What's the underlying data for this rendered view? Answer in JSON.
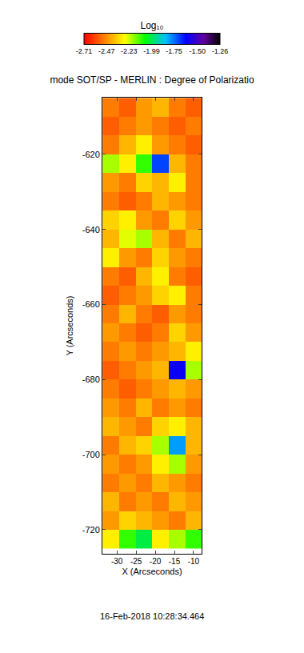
{
  "chart_data": {
    "type": "heatmap",
    "title": "mode SOT/SP - MERLIN : Degree of Polarizatio",
    "x_label": "X (Arcseconds)",
    "y_label": "Y (Arcseconds)",
    "annotations": [
      "16-Feb-2018 10:28:34.464"
    ],
    "x": [
      -31.6,
      -27.3,
      -23.0,
      -18.7,
      -14.4,
      -10.1
    ],
    "y": [
      -607.5,
      -612.5,
      -617.5,
      -622.5,
      -627.5,
      -632.5,
      -637.5,
      -642.5,
      -647.5,
      -652.5,
      -657.5,
      -662.5,
      -667.5,
      -672.5,
      -677.5,
      -682.5,
      -687.5,
      -692.5,
      -697.5,
      -702.5,
      -707.5,
      -712.5,
      -717.5,
      -722.5
    ],
    "cells": [
      [
        -2.5,
        -2.55,
        -2.45,
        -2.4,
        -2.5,
        -2.55
      ],
      [
        -2.55,
        -2.5,
        -2.45,
        -2.5,
        -2.55,
        -2.5
      ],
      [
        -2.5,
        -2.4,
        -2.3,
        -2.45,
        -2.5,
        -2.55
      ],
      [
        -2.2,
        -2.3,
        -2.1,
        -1.7,
        -2.4,
        -2.5
      ],
      [
        -2.45,
        -2.5,
        -2.35,
        -2.4,
        -2.3,
        -2.5
      ],
      [
        -2.5,
        -2.55,
        -2.5,
        -2.4,
        -2.45,
        -2.5
      ],
      [
        -2.35,
        -2.3,
        -2.45,
        -2.5,
        -2.35,
        -2.45
      ],
      [
        -2.4,
        -2.25,
        -2.2,
        -2.4,
        -2.5,
        -2.4
      ],
      [
        -2.3,
        -2.45,
        -2.5,
        -2.35,
        -2.45,
        -2.5
      ],
      [
        -2.5,
        -2.55,
        -2.4,
        -2.3,
        -2.5,
        -2.55
      ],
      [
        -2.55,
        -2.5,
        -2.45,
        -2.35,
        -2.3,
        -2.5
      ],
      [
        -2.5,
        -2.4,
        -2.5,
        -2.55,
        -2.45,
        -2.5
      ],
      [
        -2.45,
        -2.5,
        -2.55,
        -2.5,
        -2.35,
        -2.45
      ],
      [
        -2.5,
        -2.45,
        -2.5,
        -2.45,
        -2.4,
        -2.3
      ],
      [
        -2.55,
        -2.5,
        -2.45,
        -2.4,
        -1.6,
        -2.2
      ],
      [
        -2.5,
        -2.55,
        -2.5,
        -2.45,
        -2.4,
        -2.45
      ],
      [
        -2.45,
        -2.5,
        -2.4,
        -2.5,
        -2.45,
        -2.5
      ],
      [
        -2.4,
        -2.45,
        -2.5,
        -2.35,
        -2.3,
        -2.4
      ],
      [
        -2.5,
        -2.4,
        -2.35,
        -2.2,
        -1.8,
        -2.4
      ],
      [
        -2.45,
        -2.5,
        -2.45,
        -2.3,
        -2.2,
        -2.45
      ],
      [
        -2.5,
        -2.45,
        -2.5,
        -2.4,
        -2.45,
        -2.5
      ],
      [
        -2.4,
        -2.5,
        -2.45,
        -2.5,
        -2.4,
        -2.45
      ],
      [
        -2.45,
        -2.35,
        -2.4,
        -2.45,
        -2.5,
        -2.4
      ],
      [
        -2.3,
        -2.1,
        -2.0,
        -2.3,
        -2.2,
        -2.1
      ]
    ],
    "xlim": [
      -33.8,
      -7.9
    ],
    "xticks": [
      -30,
      -25,
      -20,
      -15,
      -10
    ],
    "ylim": [
      -726.4,
      -604.9
    ],
    "yticks": [
      -720,
      -700,
      -680,
      -660,
      -640,
      -620
    ],
    "colorbar": {
      "title": "Log₁₀",
      "range": [
        -2.71,
        -1.26
      ],
      "ticks": [
        -2.71,
        -2.47,
        -2.23,
        -1.99,
        -1.75,
        {
          "value": -1.5,
          "label": "-1.50"
        },
        -1.26
      ]
    },
    "grid": false
  }
}
